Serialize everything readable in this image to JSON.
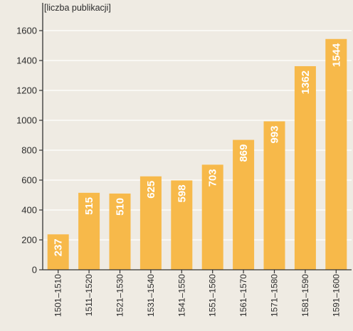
{
  "chart_data": {
    "type": "bar",
    "ylabel": "[liczba publikacji]",
    "categories": [
      "1501–1510",
      "1511–1520",
      "1521–1530",
      "1531–1540",
      "1541–1550",
      "1551–1560",
      "1561–1570",
      "1571–1580",
      "1581–1590",
      "1591–1600"
    ],
    "values": [
      237,
      515,
      510,
      625,
      598,
      703,
      869,
      993,
      1362,
      1544
    ],
    "data_labels": [
      "237",
      "515",
      "510",
      "625",
      "598",
      "703",
      "869",
      "993",
      "1362",
      "1544"
    ],
    "yticks": [
      0,
      200,
      400,
      600,
      800,
      1000,
      1200,
      1400,
      1600
    ],
    "ylim": [
      0,
      1720
    ],
    "grid": "horizontal",
    "bar_color": "#f7b94a",
    "grid_color": "#ffffff",
    "background": "#efebe3"
  }
}
